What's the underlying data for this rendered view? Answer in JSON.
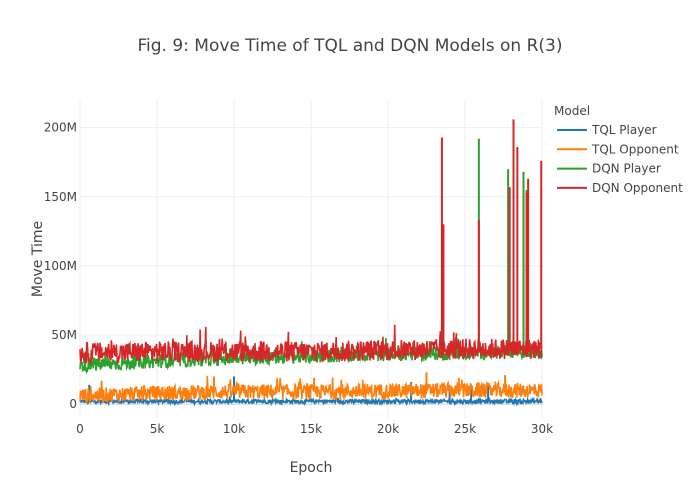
{
  "chart_data": {
    "type": "line",
    "title": "Fig. 9: Move Time of TQL and DQN Models on R(3)",
    "xlabel": "Epoch",
    "ylabel": "Move Time",
    "xlim": [
      0,
      30000
    ],
    "ylim": [
      -10000000,
      220000000
    ],
    "x_ticks": [
      0,
      5000,
      10000,
      15000,
      20000,
      25000,
      30000
    ],
    "x_tick_labels": [
      "0",
      "5k",
      "10k",
      "15k",
      "20k",
      "25k",
      "30k"
    ],
    "y_ticks": [
      0,
      50000000,
      100000000,
      150000000,
      200000000
    ],
    "y_tick_labels": [
      "0",
      "50M",
      "100M",
      "150M",
      "200M"
    ],
    "grid": true,
    "legend": {
      "title": "Model",
      "placement": "right"
    },
    "series": [
      {
        "name": "TQL Player",
        "color": "#1f77b4",
        "x": [
          0,
          5000,
          10000,
          15000,
          20000,
          25000,
          30000
        ],
        "values": [
          2000000,
          2000000,
          2000000,
          2000000,
          2000000,
          2000000,
          2000000
        ],
        "spikes": [
          [
            600,
            14000000
          ],
          [
            10000,
            20000000
          ],
          [
            21500,
            16000000
          ],
          [
            24000,
            13000000
          ],
          [
            25400,
            14000000
          ],
          [
            26500,
            15000000
          ]
        ]
      },
      {
        "name": "TQL Opponent",
        "color": "#ff7f0e",
        "x": [
          0,
          5000,
          10000,
          15000,
          20000,
          25000,
          30000
        ],
        "values": [
          6000000,
          8000000,
          9000000,
          9000000,
          9500000,
          10000000,
          10000000
        ],
        "spikes": [
          [
            8700,
            20000000
          ],
          [
            15200,
            19000000
          ],
          [
            22500,
            23000000
          ],
          [
            24600,
            19000000
          ],
          [
            27600,
            21000000
          ]
        ]
      },
      {
        "name": "DQN Player",
        "color": "#2ca02c",
        "x": [
          0,
          5000,
          10000,
          15000,
          20000,
          25000,
          30000
        ],
        "values": [
          28000000,
          31000000,
          33000000,
          34500000,
          36000000,
          37000000,
          38000000
        ],
        "spikes": [
          [
            25900,
            192000000
          ],
          [
            27800,
            170000000
          ],
          [
            28800,
            168000000
          ],
          [
            29000,
            155000000
          ]
        ]
      },
      {
        "name": "DQN Opponent",
        "color": "#d62728",
        "x": [
          0,
          5000,
          10000,
          15000,
          20000,
          25000,
          30000
        ],
        "values": [
          37000000,
          38000000,
          38000000,
          38000000,
          39000000,
          40000000,
          40000000
        ],
        "spikes": [
          [
            23500,
            193000000
          ],
          [
            23600,
            130000000
          ],
          [
            25900,
            133000000
          ],
          [
            27900,
            157000000
          ],
          [
            28150,
            206000000
          ],
          [
            28400,
            186000000
          ],
          [
            29000,
            153000000
          ],
          [
            29100,
            163000000
          ],
          [
            29950,
            176000000
          ]
        ]
      }
    ]
  }
}
